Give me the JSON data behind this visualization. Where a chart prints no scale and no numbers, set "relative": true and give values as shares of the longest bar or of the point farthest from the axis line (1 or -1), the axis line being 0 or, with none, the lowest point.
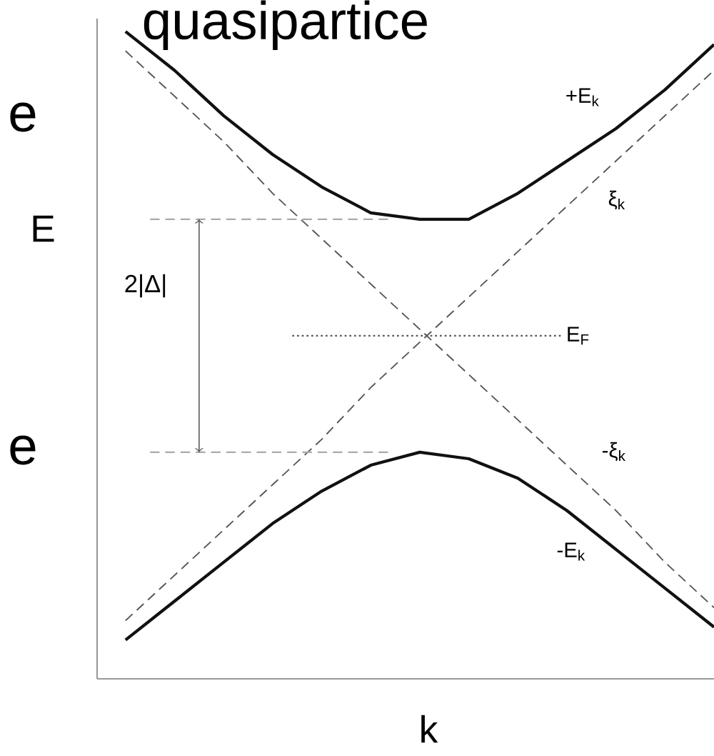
{
  "chart_data": {
    "type": "line",
    "relative": true,
    "title": "quasipartice",
    "xlabel": "k",
    "ylabel": "E",
    "categories": [
      null,
      null,
      null,
      null,
      null,
      null,
      null,
      null,
      null,
      null,
      null,
      null,
      null
    ],
    "series": [
      {
        "name": "+E$_{k}$",
        "color": "#111111",
        "line_style": "solid",
        "values": [
          1.0,
          0.94,
          0.87,
          0.81,
          0.76,
          0.72,
          0.71,
          0.71,
          0.75,
          0.8,
          0.85,
          0.91,
          0.98
        ]
      },
      {
        "name": "ξ$_{k}$",
        "color": "#555555",
        "line_style": "dashed",
        "values": [
          0.09,
          0.16,
          0.23,
          0.3,
          0.37,
          0.45,
          0.52,
          0.59,
          0.66,
          0.73,
          0.8,
          0.87,
          0.94
        ]
      },
      {
        "name": "-ξ$_{k}$",
        "color": "#555555",
        "line_style": "dashed",
        "values": [
          0.97,
          0.9,
          0.83,
          0.75,
          0.68,
          0.61,
          0.54,
          0.47,
          0.4,
          0.33,
          0.26,
          0.18,
          0.11
        ]
      },
      {
        "name": "-E$_{k}$",
        "color": "#111111",
        "line_style": "solid",
        "values": [
          0.06,
          0.12,
          0.18,
          0.24,
          0.29,
          0.33,
          0.35,
          0.34,
          0.31,
          0.26,
          0.2,
          0.14,
          0.08
        ]
      }
    ],
    "ref_lines": [
      {
        "axis": "y",
        "value": 0.53,
        "label": "E$_{F}$",
        "line_style": "dotted",
        "color": "#555555"
      },
      {
        "axis": "y",
        "value": 0.71,
        "line_style": "dashed",
        "color": "#aaaaaa"
      },
      {
        "axis": "y",
        "value": 0.35,
        "line_style": "dashed",
        "color": "#aaaaaa"
      }
    ],
    "annotations": [
      "2|Δ|",
      "e",
      "e"
    ]
  }
}
